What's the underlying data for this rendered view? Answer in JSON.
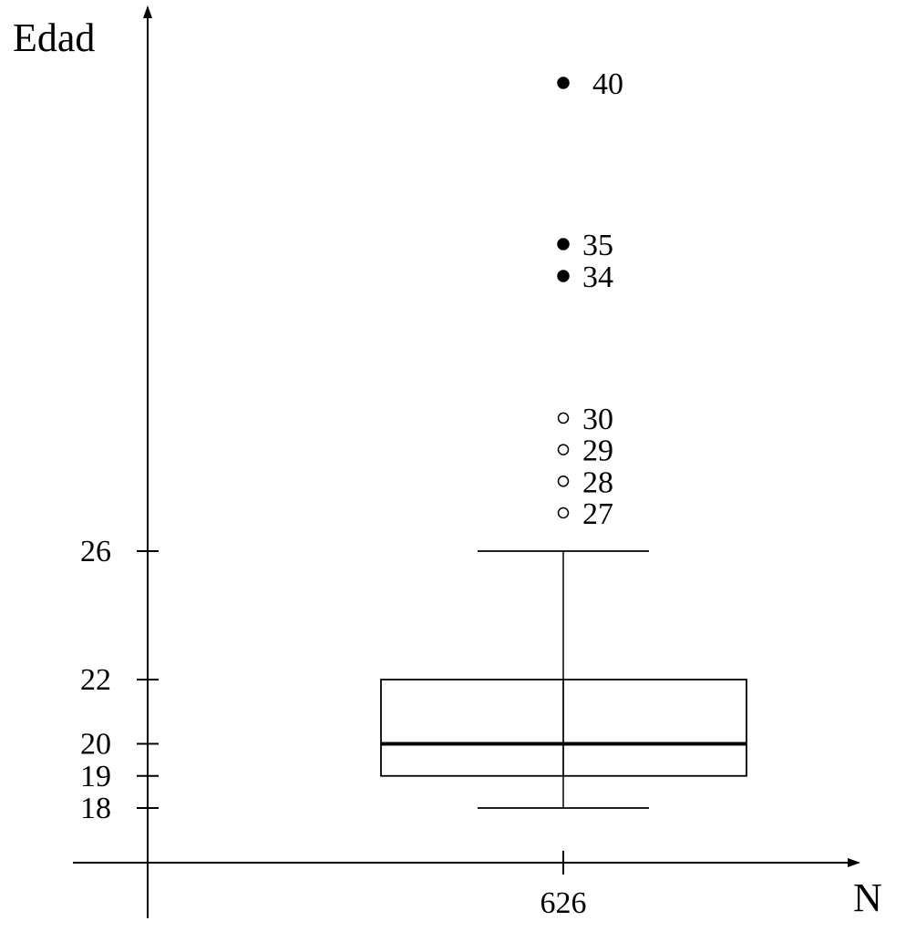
{
  "chart_data": {
    "type": "box",
    "ylabel": "Edad",
    "xlabel": "N",
    "categories": [
      "626"
    ],
    "y_ticks": [
      18,
      19,
      20,
      22,
      26
    ],
    "box": {
      "whisker_low": 18,
      "q1": 19,
      "median": 20,
      "q3": 22,
      "whisker_high": 26
    },
    "outliers": [
      {
        "value": 27,
        "label": "27",
        "style": "open"
      },
      {
        "value": 28,
        "label": "28",
        "style": "open"
      },
      {
        "value": 29,
        "label": "29",
        "style": "open"
      },
      {
        "value": 30,
        "label": "30",
        "style": "open"
      },
      {
        "value": 34,
        "label": "34",
        "style": "filled"
      },
      {
        "value": 35,
        "label": "35",
        "style": "filled"
      },
      {
        "value": 40,
        "label": "40",
        "style": "filled"
      }
    ]
  }
}
